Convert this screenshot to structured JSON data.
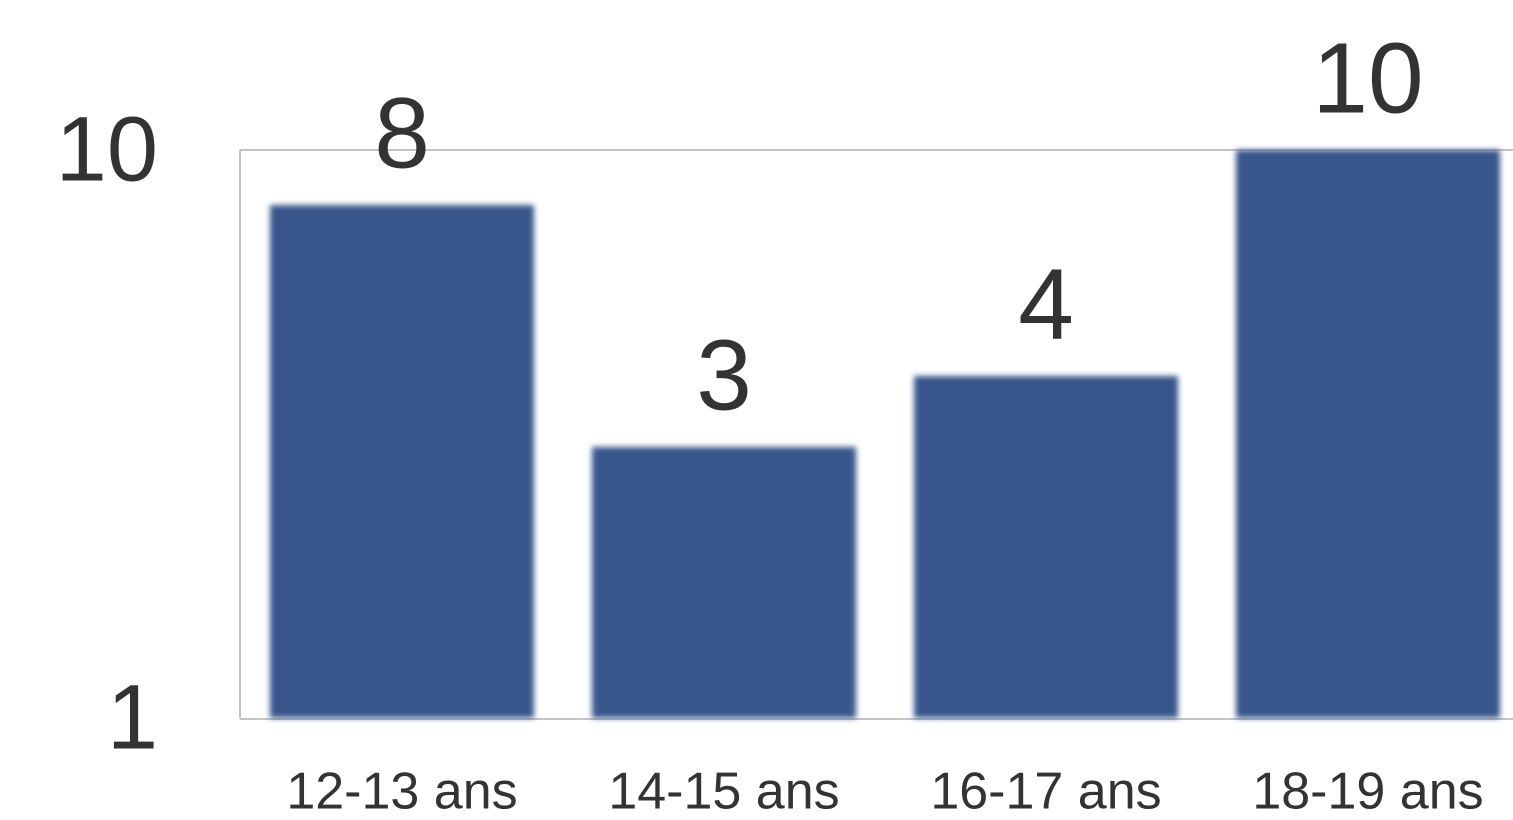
{
  "chart_data": {
    "type": "bar",
    "categories": [
      "12-13 ans",
      "14-15 ans",
      "16-17 ans",
      "18-19 ans"
    ],
    "values": [
      8,
      3,
      4,
      10
    ],
    "color": "#38578c",
    "ylim": [
      1,
      10
    ],
    "yticks": [
      1,
      10
    ],
    "log_scale": true,
    "grid": false
  }
}
